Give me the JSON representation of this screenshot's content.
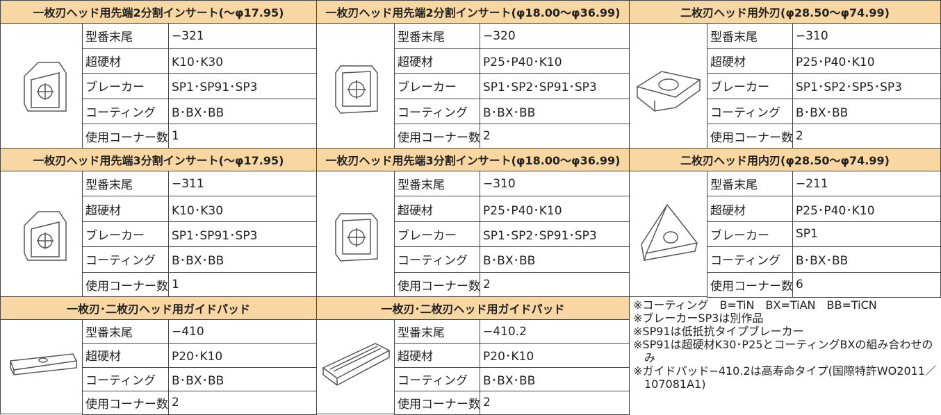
{
  "blocks": [
    {
      "title": "一枚刃ヘッド用先端2分割インサート(〜φ17.95)",
      "rows": [
        [
          "型番末尾",
          "−321"
        ],
        [
          "超硬材",
          "K10･K30"
        ],
        [
          "ブレーカー",
          "SP1･SP91･SP3"
        ],
        [
          "コーティング",
          "B･BX･BB"
        ],
        [
          "使用コーナー数",
          "1"
        ]
      ]
    },
    {
      "title": "一枚刃ヘッド用先端2分割インサート(φ18.00〜φ36.99)",
      "rows": [
        [
          "型番末尾",
          "−320"
        ],
        [
          "超硬材",
          "P25･P40･K10"
        ],
        [
          "ブレーカー",
          "SP1･SP2･SP91･SP3"
        ],
        [
          "コーティング",
          "B･BX･BB"
        ],
        [
          "使用コーナー数",
          "2"
        ]
      ]
    },
    {
      "title": "二枚刃ヘッド用外刃(φ28.50〜φ74.99)",
      "rows": [
        [
          "型番末尾",
          "−310"
        ],
        [
          "超硬材",
          "P25･P40･K10"
        ],
        [
          "ブレーカー",
          "SP1･SP2･SP5･SP3"
        ],
        [
          "コーティング",
          "B･BX･BB"
        ],
        [
          "使用コーナー数",
          "2"
        ]
      ]
    },
    {
      "title": "一枚刃ヘッド用先端3分割インサート(〜φ17.95)",
      "rows": [
        [
          "型番末尾",
          "−311"
        ],
        [
          "超硬材",
          "K10･K30"
        ],
        [
          "ブレーカー",
          "SP1･SP91･SP3"
        ],
        [
          "コーティング",
          "B･BX･BB"
        ],
        [
          "使用コーナー数",
          "1"
        ]
      ]
    },
    {
      "title": "一枚刃ヘッド用先端3分割インサート(φ18.00〜φ36.99)",
      "rows": [
        [
          "型番末尾",
          "−310"
        ],
        [
          "超硬材",
          "P25･P40･K10"
        ],
        [
          "ブレーカー",
          "SP1･SP2･SP91･SP3"
        ],
        [
          "コーティング",
          "B･BX･BB"
        ],
        [
          "使用コーナー数",
          "2"
        ]
      ]
    },
    {
      "title": "二枚刃ヘッド用内刃(φ28.50〜φ74.99)",
      "rows": [
        [
          "型番末尾",
          "−211"
        ],
        [
          "超硬材",
          "P25･P40･K10"
        ],
        [
          "ブレーカー",
          "SP1"
        ],
        [
          "コーティング",
          "B･BX･BB"
        ],
        [
          "使用コーナー数",
          "6"
        ]
      ]
    },
    {
      "title": "一枚刃･二枚刃ヘッド用ガイドパッド",
      "rows": [
        [
          "型番末尾",
          "−410"
        ],
        [
          "超硬材",
          "P20･K10"
        ],
        [
          "コーティング",
          "B･BX･BB"
        ],
        [
          "使用コーナー数",
          "2"
        ]
      ]
    },
    {
      "title": "一枚刃･二枚刃ヘッド用ガイドパッド",
      "rows": [
        [
          "型番末尾",
          "−410.2"
        ],
        [
          "超硬材",
          "P20･K10"
        ],
        [
          "コーティング",
          "B･BX･BB"
        ],
        [
          "使用コーナー数",
          "2"
        ]
      ]
    }
  ],
  "notes": [
    "※コーティング　B=TiN　BX=TiAN　BB=TiCN",
    "※ブレーカーSP3は別作品",
    "※SP91は低抵抗タイプブレーカー",
    "※SP91は超硬材K30･P25とコーティングBXの組み合わせのみ",
    "※ガイドパッド−410.2は高寿命タイプ(国際特許WO2011／107081A1)"
  ]
}
